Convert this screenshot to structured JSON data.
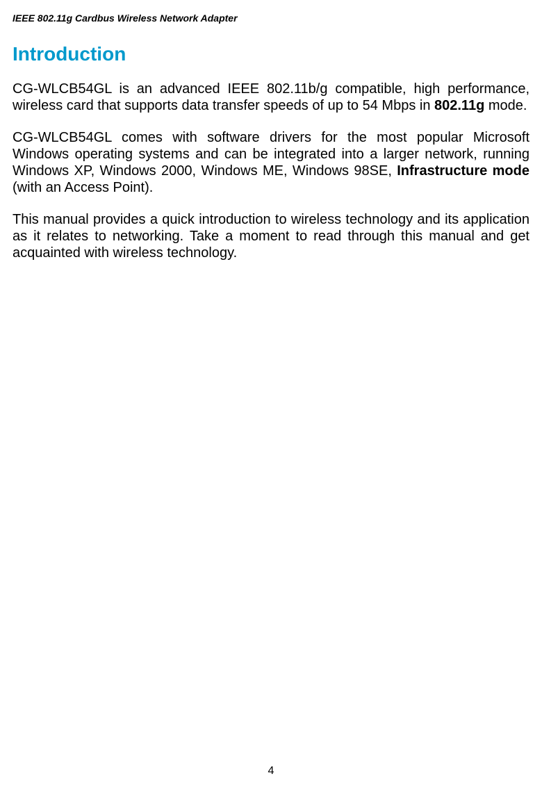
{
  "header": {
    "text": "IEEE 802.11g Cardbus Wireless Network Adapter"
  },
  "heading": {
    "text": "Introduction",
    "color": "#0099cc",
    "fontsize": 28
  },
  "paragraphs": {
    "p1": {
      "part1": "CG-WLCB54GL is an advanced IEEE 802.11b/g compatible, high performance, wireless card that supports data transfer speeds of up to 54 Mbps in ",
      "bold1": "802.11g",
      "part2": " mode."
    },
    "p2": {
      "part1": "CG-WLCB54GL comes with software drivers for the most popular Microsoft Windows operating systems and can be integrated into a larger network, running Windows XP, Windows 2000, Windows ME, Windows 98SE, ",
      "bold1": "Infrastructure mode",
      "part2": " (with an Access Point)."
    },
    "p3": {
      "text": "This manual provides a quick introduction to wireless technology and its application as it relates to networking. Take a moment to read through this manual and get acquainted with wireless technology."
    }
  },
  "pageNumber": "4",
  "styles": {
    "body_font": "Arial",
    "body_fontsize": 20,
    "heading_color": "#0099cc",
    "text_color": "#000000",
    "background_color": "#ffffff"
  }
}
